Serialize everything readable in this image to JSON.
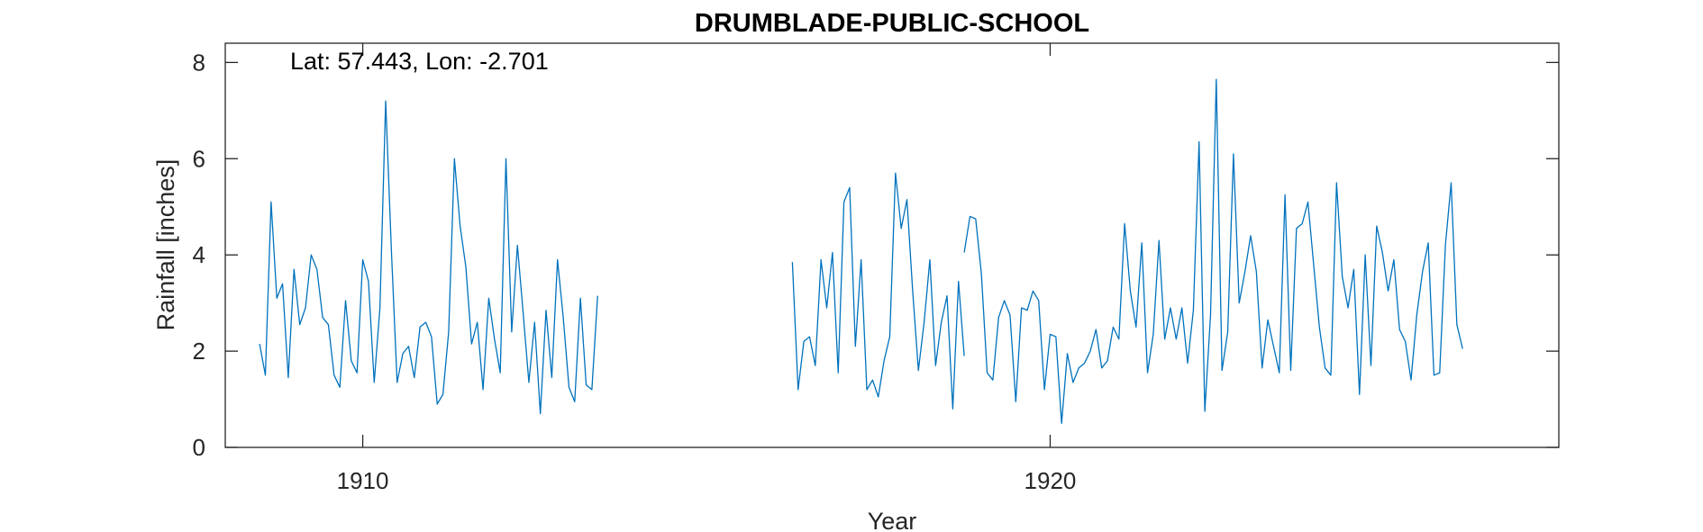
{
  "chart_data": {
    "type": "line",
    "title": "DRUMBLADE-PUBLIC-SCHOOL",
    "annotation": "Lat: 57.443, Lon: -2.701",
    "xlabel": "Year",
    "ylabel": "Rainfall [inches]",
    "xlim": [
      1908.0,
      1927.4
    ],
    "ylim": [
      0,
      8.4
    ],
    "xticks": [
      1910,
      1920
    ],
    "yticks": [
      0,
      2,
      4,
      6,
      8
    ],
    "grid": false,
    "line_color": "#0072BD",
    "series": [
      {
        "segments": [
          {
            "start": 1908.5,
            "values": [
              2.15,
              1.5,
              5.1,
              3.1,
              3.4,
              1.45,
              3.7,
              2.55,
              2.9,
              4.0,
              3.7,
              2.7,
              2.55,
              1.5,
              1.25,
              3.05,
              1.8,
              1.55,
              3.9,
              3.45,
              1.35,
              2.9,
              7.2,
              4.1,
              1.35,
              1.95,
              2.1,
              1.45,
              2.5,
              2.6,
              2.3,
              0.9,
              1.1,
              2.4,
              6.0,
              4.6,
              3.75,
              2.15,
              2.6,
              1.2,
              3.1,
              2.25,
              1.55,
              6.0,
              2.4,
              4.2,
              2.8,
              1.35,
              2.6,
              0.7,
              2.85,
              1.45,
              3.9,
              2.7,
              1.25,
              0.95,
              3.1,
              1.3,
              1.2,
              3.15
            ]
          },
          {
            "start": 1916.25,
            "values": [
              3.85,
              1.2,
              2.2,
              2.3,
              1.7,
              3.9,
              2.9,
              4.05,
              1.55,
              5.1,
              5.4,
              2.1,
              3.9,
              1.2,
              1.4,
              1.05,
              1.8,
              2.3,
              5.7,
              4.55,
              5.15,
              3.25,
              1.6,
              2.6,
              3.9,
              1.7,
              2.6,
              3.15,
              0.8,
              3.45,
              1.9
            ]
          },
          {
            "start": 1918.75,
            "values": [
              4.05,
              4.8,
              4.75,
              3.6,
              1.55,
              1.4,
              2.7,
              3.05,
              2.75,
              0.95,
              2.9,
              2.85,
              3.25,
              3.05,
              1.2,
              2.35,
              2.3,
              0.5,
              1.95,
              1.35,
              1.65,
              1.75,
              2.0,
              2.45,
              1.65,
              1.8,
              2.5,
              2.25,
              4.65,
              3.25,
              2.5,
              4.25,
              1.55,
              2.35,
              4.3,
              2.25,
              2.9,
              2.25,
              2.9,
              1.75,
              2.85,
              6.35,
              0.75,
              2.75,
              7.65,
              1.6,
              2.4,
              6.1,
              3.0,
              3.65,
              4.4,
              3.65,
              1.65,
              2.65,
              2.1,
              1.55,
              5.25,
              1.6,
              4.55,
              4.65,
              5.1,
              3.8,
              2.5,
              1.65,
              1.5,
              5.5,
              3.55,
              2.9,
              3.7,
              1.1,
              4.0,
              1.7,
              4.6,
              4.05,
              3.25,
              3.9,
              2.45,
              2.2,
              1.4,
              2.75,
              3.65,
              4.25,
              1.5,
              1.55,
              4.2,
              5.5,
              2.55,
              2.05
            ]
          }
        ]
      }
    ]
  }
}
